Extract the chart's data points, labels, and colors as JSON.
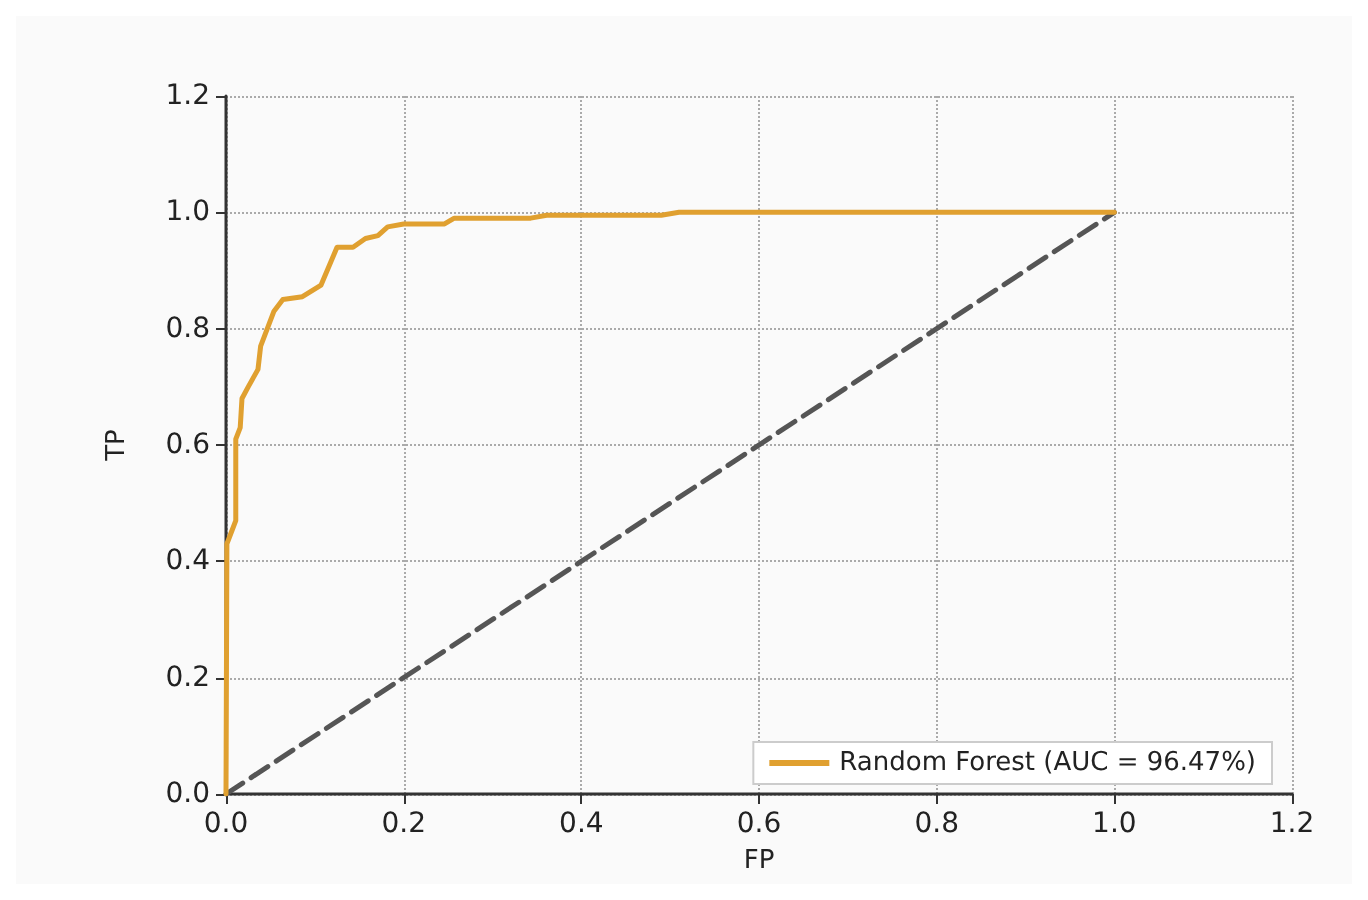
{
  "chart_data": {
    "type": "line",
    "xlabel": "FP",
    "ylabel": "TP",
    "xlim": [
      0,
      1.2
    ],
    "xticks": [
      {
        "value": 0,
        "label": "0.0"
      },
      0.2,
      0.4,
      0.6,
      0.8,
      {
        "value": 1,
        "label": "1.0"
      },
      1.2
    ],
    "ylim": [
      0,
      1.2
    ],
    "yticks": [
      {
        "value": 0,
        "label": "0.0"
      },
      0.2,
      0.4,
      0.6,
      0.8,
      {
        "value": 1,
        "label": "1.0"
      },
      1.2
    ],
    "grid": true,
    "legend": "bottom right",
    "marker": "none",
    "series": [
      {
        "name": "Random Forest (AUC = 96.47%)",
        "color": "#e0a030",
        "line_style": "solid",
        "x": [
          0,
          0.001,
          0.006,
          0.011,
          0.011,
          0.016,
          0.018,
          0.025,
          0.036,
          0.039,
          0.054,
          0.064,
          0.086,
          0.107,
          0.125,
          0.143,
          0.157,
          0.171,
          0.182,
          0.2,
          0.246,
          0.257,
          0.343,
          0.361,
          0.49,
          0.51,
          1.0
        ],
        "values": [
          0,
          0.43,
          0.45,
          0.47,
          0.61,
          0.63,
          0.68,
          0.7,
          0.73,
          0.77,
          0.83,
          0.85,
          0.855,
          0.875,
          0.94,
          0.94,
          0.955,
          0.96,
          0.975,
          0.98,
          0.98,
          0.99,
          0.99,
          0.995,
          0.995,
          1.0,
          1.0
        ]
      },
      {
        "color": "#555555",
        "line_style": "dashed",
        "x": [
          0,
          1.0
        ],
        "values": [
          0,
          1.0
        ]
      }
    ]
  }
}
